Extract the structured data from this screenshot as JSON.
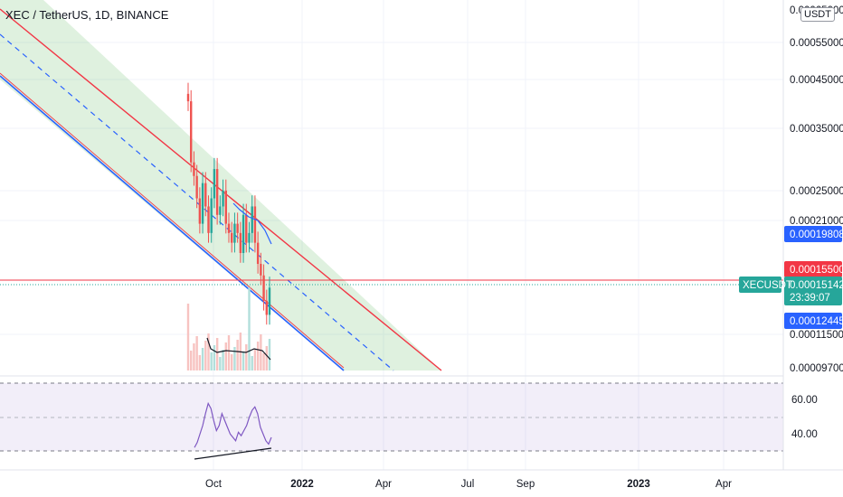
{
  "header": {
    "title": "XEC / TetherUS, 1D, BINANCE",
    "currency_badge": "USDT"
  },
  "chart_data": {
    "type": "line",
    "symbol": "XECUSDT",
    "exchange": "BINANCE",
    "timeframe": "1D",
    "price_axis": {
      "scale": "log",
      "ticks": [
        "0.00065000",
        "0.00055000",
        "0.00045000",
        "0.00035000",
        "0.00025000",
        "0.00021000",
        "0.00011500",
        "0.00009700"
      ]
    },
    "time_axis": {
      "ticks": [
        "Oct",
        "2022",
        "Apr",
        "Jul",
        "Sep",
        "2023",
        "Apr"
      ]
    },
    "price_tags": [
      {
        "value": "0.00019808",
        "color": "#2962ff"
      },
      {
        "value": "0.00015500",
        "color": "#f23645"
      },
      {
        "value": "0.00015142",
        "color": "#26a69a",
        "countdown": "23:39:07",
        "label": "XECUSDT"
      },
      {
        "value": "0.00012445",
        "color": "#2962ff"
      }
    ],
    "price_series": {
      "name": "XECUSDT",
      "x": [
        "2021-09-05",
        "2021-09-08",
        "2021-09-11",
        "2021-09-14",
        "2021-09-17",
        "2021-09-20",
        "2021-09-23",
        "2021-09-26",
        "2021-09-29",
        "2021-10-02",
        "2021-10-05",
        "2021-10-08",
        "2021-10-11",
        "2021-10-14",
        "2021-10-17",
        "2021-10-20",
        "2021-10-23",
        "2021-10-26",
        "2021-10-29",
        "2021-11-01",
        "2021-11-04",
        "2021-11-07",
        "2021-11-10",
        "2021-11-13",
        "2021-11-16",
        "2021-11-19",
        "2021-11-22",
        "2021-11-25",
        "2021-11-28"
      ],
      "close": [
        0.0004,
        0.00029,
        0.00027,
        0.00024,
        0.00021,
        0.00026,
        0.00023,
        0.0002,
        0.00024,
        0.00028,
        0.00022,
        0.00023,
        0.00025,
        0.00021,
        0.0002,
        0.00019,
        0.00021,
        0.0002,
        0.00018,
        0.00022,
        0.00019,
        0.0002,
        0.00023,
        0.00019,
        0.00017,
        0.00016,
        0.00014,
        0.00013,
        0.00015
      ]
    },
    "channel": {
      "colors": {
        "upper": "#f23645",
        "middle": "#2962ff",
        "lower": "#2962ff",
        "fill": "#4caf50"
      }
    },
    "horizontal_line": {
      "value": 0.000155,
      "color": "#f23645"
    },
    "rsi_panel": {
      "ticks": [
        "60.00",
        "40.00"
      ],
      "band_color": "#7e57c2",
      "values": [
        32,
        35,
        40,
        45,
        52,
        58,
        55,
        48,
        42,
        45,
        52,
        48,
        44,
        40,
        38,
        36,
        41,
        39,
        42,
        45,
        50,
        54,
        56,
        52,
        44,
        40,
        36,
        34,
        38
      ]
    }
  }
}
